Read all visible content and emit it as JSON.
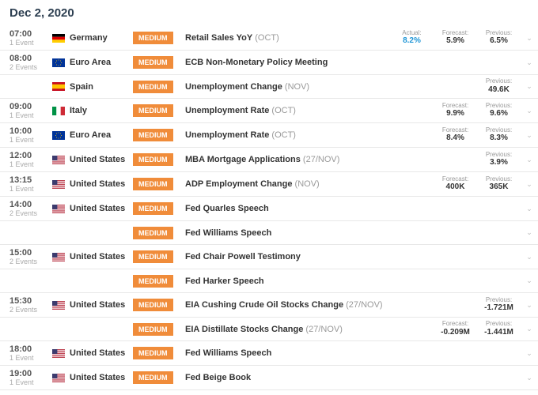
{
  "date_header": "Dec 2, 2020",
  "groups": [
    {
      "time": "07:00",
      "count": "1 Event",
      "rows": [
        {
          "flag": "de",
          "country": "Germany",
          "badge": "MEDIUM",
          "event": "Retail Sales YoY",
          "period": "(OCT)",
          "actual": "8.2%",
          "forecast": "5.9%",
          "previous": "6.5%"
        }
      ]
    },
    {
      "time": "08:00",
      "count": "2 Events",
      "rows": [
        {
          "flag": "eu",
          "country": "Euro Area",
          "badge": "MEDIUM",
          "event": "ECB Non-Monetary Policy Meeting",
          "period": "",
          "actual": "",
          "forecast": "",
          "previous": ""
        },
        {
          "flag": "es",
          "country": "Spain",
          "badge": "MEDIUM",
          "event": "Unemployment Change",
          "period": "(NOV)",
          "actual": "",
          "forecast": "",
          "previous": "49.6K"
        }
      ]
    },
    {
      "time": "09:00",
      "count": "1 Event",
      "rows": [
        {
          "flag": "it",
          "country": "Italy",
          "badge": "MEDIUM",
          "event": "Unemployment Rate",
          "period": "(OCT)",
          "actual": "",
          "forecast": "9.9%",
          "previous": "9.6%"
        }
      ]
    },
    {
      "time": "10:00",
      "count": "1 Event",
      "rows": [
        {
          "flag": "eu",
          "country": "Euro Area",
          "badge": "MEDIUM",
          "event": "Unemployment Rate",
          "period": "(OCT)",
          "actual": "",
          "forecast": "8.4%",
          "previous": "8.3%"
        }
      ]
    },
    {
      "time": "12:00",
      "count": "1 Event",
      "rows": [
        {
          "flag": "us",
          "country": "United States",
          "badge": "MEDIUM",
          "event": "MBA Mortgage Applications",
          "period": "(27/NOV)",
          "actual": "",
          "forecast": "",
          "previous": "3.9%"
        }
      ]
    },
    {
      "time": "13:15",
      "count": "1 Event",
      "rows": [
        {
          "flag": "us",
          "country": "United States",
          "badge": "MEDIUM",
          "event": "ADP Employment Change",
          "period": "(NOV)",
          "actual": "",
          "forecast": "400K",
          "previous": "365K"
        }
      ]
    },
    {
      "time": "14:00",
      "count": "2 Events",
      "rows": [
        {
          "flag": "us",
          "country": "United States",
          "badge": "MEDIUM",
          "event": "Fed Quarles Speech",
          "period": "",
          "actual": "",
          "forecast": "",
          "previous": ""
        },
        {
          "flag": "",
          "country": "",
          "badge": "MEDIUM",
          "event": "Fed Williams Speech",
          "period": "",
          "actual": "",
          "forecast": "",
          "previous": ""
        }
      ]
    },
    {
      "time": "15:00",
      "count": "2 Events",
      "rows": [
        {
          "flag": "us",
          "country": "United States",
          "badge": "MEDIUM",
          "event": "Fed Chair Powell Testimony",
          "period": "",
          "actual": "",
          "forecast": "",
          "previous": ""
        },
        {
          "flag": "",
          "country": "",
          "badge": "MEDIUM",
          "event": "Fed Harker Speech",
          "period": "",
          "actual": "",
          "forecast": "",
          "previous": ""
        }
      ]
    },
    {
      "time": "15:30",
      "count": "2 Events",
      "rows": [
        {
          "flag": "us",
          "country": "United States",
          "badge": "MEDIUM",
          "event": "EIA Cushing Crude Oil Stocks Change",
          "period": "(27/NOV)",
          "actual": "",
          "forecast": "",
          "previous": "-1.721M"
        },
        {
          "flag": "",
          "country": "",
          "badge": "MEDIUM",
          "event": "EIA Distillate Stocks Change",
          "period": "(27/NOV)",
          "actual": "",
          "forecast": "-0.209M",
          "previous": "-1.441M"
        }
      ]
    },
    {
      "time": "18:00",
      "count": "1 Event",
      "rows": [
        {
          "flag": "us",
          "country": "United States",
          "badge": "MEDIUM",
          "event": "Fed Williams Speech",
          "period": "",
          "actual": "",
          "forecast": "",
          "previous": ""
        }
      ]
    },
    {
      "time": "19:00",
      "count": "1 Event",
      "rows": [
        {
          "flag": "us",
          "country": "United States",
          "badge": "MEDIUM",
          "event": "Fed Beige Book",
          "period": "",
          "actual": "",
          "forecast": "",
          "previous": ""
        }
      ]
    }
  ],
  "labels": {
    "actual": "Actual:",
    "forecast": "Forecast:",
    "previous": "Previous:"
  },
  "colors": {
    "badge_bg": "#f08c3a",
    "actual_text": "#2196d6",
    "border": "#e8e8e8",
    "header_text": "#2c3e50"
  },
  "flags": {
    "de": "<svg viewBox='0 0 16 11'><rect width='16' height='3.67' fill='#000'/><rect y='3.67' width='16' height='3.67' fill='#dd0000'/><rect y='7.33' width='16' height='3.67' fill='#ffce00'/></svg>",
    "eu": "<svg viewBox='0 0 16 11'><rect width='16' height='11' fill='#003399'/><g fill='#ffcc00'><circle cx='8' cy='2' r='0.5'/><circle cx='8' cy='9' r='0.5'/><circle cx='4.5' cy='5.5' r='0.5'/><circle cx='11.5' cy='5.5' r='0.5'/><circle cx='5.5' cy='3' r='0.5'/><circle cx='10.5' cy='3' r='0.5'/><circle cx='5.5' cy='8' r='0.5'/><circle cx='10.5' cy='8' r='0.5'/></g></svg>",
    "es": "<svg viewBox='0 0 16 11'><rect width='16' height='11' fill='#c60b1e'/><rect y='2.75' width='16' height='5.5' fill='#ffc400'/></svg>",
    "it": "<svg viewBox='0 0 16 11'><rect width='5.33' height='11' fill='#009246'/><rect x='5.33' width='5.33' height='11' fill='#fff'/><rect x='10.67' width='5.33' height='11' fill='#ce2b37'/></svg>",
    "us": "<svg viewBox='0 0 16 11'><rect width='16' height='11' fill='#b22234'/><rect y='0.85' width='16' height='0.85' fill='#fff'/><rect y='2.54' width='16' height='0.85' fill='#fff'/><rect y='4.23' width='16' height='0.85' fill='#fff'/><rect y='5.92' width='16' height='0.85' fill='#fff'/><rect y='7.62' width='16' height='0.85' fill='#fff'/><rect y='9.31' width='16' height='0.85' fill='#fff'/><rect width='6.4' height='5.92' fill='#3c3b6e'/></svg>"
  }
}
